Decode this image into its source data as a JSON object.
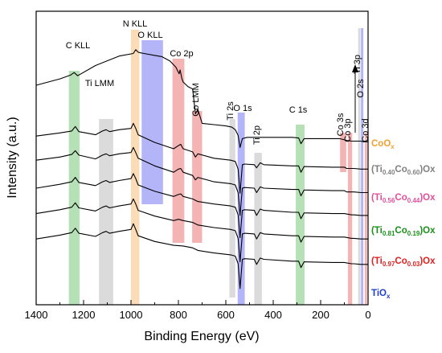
{
  "chart_data": {
    "type": "line",
    "title": "",
    "xlabel": "Binding Energy (eV)",
    "ylabel": "Intensity (a.u.)",
    "xlim": [
      1400,
      0
    ],
    "x_reversed": true,
    "x_ticks": [
      "1400",
      "1200",
      "1000",
      "800",
      "600",
      "400",
      "200",
      "0"
    ],
    "y_ticks": "none",
    "grid": false,
    "bands": [
      {
        "label": "C KLL",
        "from": 1262,
        "to": 1217,
        "color": "#8fd18f"
      },
      {
        "label": "Ti LMM",
        "from": 1135,
        "to": 1075,
        "color": "#c8c8c8"
      },
      {
        "label": "N KLL",
        "from": 1000,
        "to": 965,
        "color": "#f9c98f"
      },
      {
        "label": "O KLL",
        "from": 955,
        "to": 865,
        "color": "#8c8cf5"
      },
      {
        "label": "Co 2p",
        "from": 825,
        "to": 775,
        "color": "#f08c8c"
      },
      {
        "label": "Co LMM",
        "from": 742,
        "to": 700,
        "color": "#f08c8c"
      },
      {
        "label": "Ti 2s",
        "from": 585,
        "to": 560,
        "color": "#c8c8c8"
      },
      {
        "label": "O 1s",
        "from": 550,
        "to": 520,
        "color": "#8c8cf5"
      },
      {
        "label": "Ti 2p",
        "from": 480,
        "to": 448,
        "color": "#c8c8c8"
      },
      {
        "label": "C 1s",
        "from": 305,
        "to": 268,
        "color": "#8fd18f"
      },
      {
        "label": "Co 3s",
        "from": 118,
        "to": 92,
        "color": "#f08c8c"
      },
      {
        "label": "Co 3p",
        "from": 85,
        "to": 67,
        "color": "#f08c8c"
      },
      {
        "label": "Ti 3p",
        "from": 42,
        "to": 32,
        "color": "#c8c8c8"
      },
      {
        "label": "O 2s",
        "from": 30,
        "to": 20,
        "color": "#8c8cf5"
      },
      {
        "label": "Co 3d",
        "from": 14,
        "to": 4,
        "color": "#f08c8c"
      }
    ],
    "series": [
      {
        "name": "CoO",
        "sub": "x",
        "name_after": "",
        "color": "#f0a030",
        "x": [
          1400,
          1300,
          1255,
          1240,
          1225,
          1150,
          1050,
          990,
          980,
          970,
          960,
          945,
          900,
          870,
          835,
          810,
          805,
          797,
          793,
          785,
          780,
          760,
          740,
          728,
          718,
          700,
          650,
          600,
          575,
          560,
          548,
          540,
          530,
          510,
          480,
          460,
          440,
          380,
          320,
          293,
          283,
          270,
          200,
          120,
          100,
          90,
          70,
          60,
          30,
          20,
          0
        ],
        "y": [
          0.0,
          0.1,
          0.16,
          0.2,
          0.15,
          0.31,
          0.46,
          0.5,
          0.56,
          0.52,
          0.51,
          0.5,
          0.47,
          0.45,
          0.38,
          0.28,
          0.24,
          0.18,
          0.24,
          0.1,
          0.05,
          -0.02,
          -0.06,
          -0.45,
          -0.38,
          -0.6,
          -0.62,
          -0.64,
          -0.66,
          -0.7,
          -0.79,
          -0.98,
          -0.84,
          -0.82,
          -0.82,
          -0.82,
          -0.82,
          -0.82,
          -0.82,
          -0.83,
          -0.92,
          -0.84,
          -0.84,
          -0.84,
          -0.86,
          -0.87,
          -0.88,
          -0.88,
          -0.88,
          -0.89,
          -0.89
        ]
      },
      {
        "name": "(Ti",
        "sub": "0.40",
        "mid": "Co",
        "sub2": "0.60",
        "name_after": ")Ox",
        "color": "#808080",
        "x": [
          1400,
          1300,
          1250,
          1235,
          1220,
          1150,
          1120,
          1105,
          1090,
          1050,
          1000,
          990,
          980,
          970,
          900,
          820,
          800,
          790,
          780,
          740,
          728,
          718,
          650,
          580,
          560,
          548,
          540,
          530,
          520,
          480,
          470,
          455,
          440,
          320,
          293,
          283,
          270,
          150,
          100,
          90,
          70,
          60,
          30,
          0
        ],
        "y": [
          -0.8,
          -0.75,
          -0.72,
          -0.65,
          -0.73,
          -0.78,
          -0.72,
          -0.7,
          -0.73,
          -0.7,
          -0.68,
          -0.6,
          -0.68,
          -0.78,
          -0.9,
          -1.0,
          -0.95,
          -0.93,
          -1.0,
          -1.05,
          -1.13,
          -1.08,
          -1.15,
          -1.18,
          -1.2,
          -1.32,
          -1.7,
          -1.25,
          -1.24,
          -1.25,
          -1.3,
          -1.22,
          -1.25,
          -1.27,
          -1.27,
          -1.37,
          -1.28,
          -1.29,
          -1.29,
          -1.31,
          -1.31,
          -1.31,
          -1.32,
          -1.32
        ]
      },
      {
        "name": "(Ti",
        "sub": "0.56",
        "mid": "Co",
        "sub2": "0.44",
        "name_after": ")Ox",
        "color": "#e0509a",
        "x": [
          1400,
          1300,
          1250,
          1235,
          1220,
          1150,
          1120,
          1105,
          1090,
          1050,
          1000,
          990,
          980,
          970,
          900,
          820,
          800,
          790,
          780,
          740,
          728,
          718,
          650,
          580,
          560,
          548,
          540,
          530,
          520,
          480,
          470,
          455,
          440,
          320,
          293,
          283,
          270,
          150,
          100,
          90,
          70,
          60,
          30,
          0
        ],
        "y": [
          -1.18,
          -1.13,
          -1.09,
          -1.03,
          -1.1,
          -1.16,
          -1.1,
          -1.08,
          -1.11,
          -1.08,
          -1.06,
          -0.98,
          -1.06,
          -1.15,
          -1.27,
          -1.37,
          -1.32,
          -1.31,
          -1.37,
          -1.42,
          -1.49,
          -1.45,
          -1.52,
          -1.55,
          -1.57,
          -1.69,
          -2.05,
          -1.62,
          -1.61,
          -1.62,
          -1.69,
          -1.6,
          -1.62,
          -1.64,
          -1.64,
          -1.74,
          -1.65,
          -1.66,
          -1.66,
          -1.68,
          -1.68,
          -1.68,
          -1.69,
          -1.69
        ]
      },
      {
        "name": "(Ti",
        "sub": "0.81",
        "mid": "Co",
        "sub2": "0.19",
        "name_after": ")Ox",
        "color": "#1a8f1a",
        "x": [
          1400,
          1300,
          1250,
          1235,
          1220,
          1150,
          1120,
          1105,
          1090,
          1050,
          1000,
          990,
          980,
          970,
          900,
          820,
          800,
          790,
          780,
          740,
          718,
          650,
          580,
          560,
          548,
          540,
          530,
          520,
          480,
          470,
          455,
          440,
          320,
          293,
          283,
          270,
          150,
          100,
          70,
          60,
          30,
          0
        ],
        "y": [
          -1.62,
          -1.56,
          -1.52,
          -1.45,
          -1.53,
          -1.58,
          -1.52,
          -1.5,
          -1.53,
          -1.5,
          -1.47,
          -1.39,
          -1.47,
          -1.57,
          -1.67,
          -1.75,
          -1.72,
          -1.71,
          -1.75,
          -1.79,
          -1.83,
          -1.87,
          -1.9,
          -1.92,
          -2.04,
          -2.4,
          -1.97,
          -1.96,
          -1.97,
          -2.05,
          -1.95,
          -1.97,
          -2.0,
          -2.0,
          -2.1,
          -2.01,
          -2.02,
          -2.02,
          -2.04,
          -2.04,
          -2.05,
          -2.05
        ]
      },
      {
        "name": "(Ti",
        "sub": "0.97",
        "mid": "Co",
        "sub2": "0.03",
        "name_after": ")Ox",
        "color": "#e02020",
        "x": [
          1400,
          1300,
          1250,
          1235,
          1220,
          1150,
          1120,
          1105,
          1090,
          1050,
          1000,
          990,
          980,
          970,
          900,
          820,
          800,
          780,
          740,
          718,
          650,
          580,
          560,
          548,
          540,
          530,
          520,
          480,
          470,
          455,
          440,
          320,
          293,
          283,
          270,
          150,
          100,
          70,
          60,
          30,
          0
        ],
        "y": [
          -2.02,
          -1.96,
          -1.92,
          -1.85,
          -1.93,
          -1.98,
          -1.92,
          -1.9,
          -1.93,
          -1.9,
          -1.87,
          -1.79,
          -1.87,
          -1.97,
          -2.06,
          -2.13,
          -2.11,
          -2.13,
          -2.16,
          -2.2,
          -2.24,
          -2.27,
          -2.29,
          -2.41,
          -2.78,
          -2.34,
          -2.33,
          -2.34,
          -2.42,
          -2.32,
          -2.34,
          -2.37,
          -2.37,
          -2.47,
          -2.38,
          -2.39,
          -2.39,
          -2.41,
          -2.41,
          -2.42,
          -2.42
        ]
      },
      {
        "name": "TiO",
        "sub": "x",
        "name_after": "",
        "color": "#2040d0",
        "x": [
          1400,
          1300,
          1250,
          1235,
          1220,
          1150,
          1120,
          1105,
          1090,
          1050,
          1000,
          990,
          980,
          970,
          900,
          820,
          780,
          740,
          718,
          650,
          580,
          560,
          548,
          540,
          530,
          520,
          480,
          470,
          455,
          440,
          320,
          293,
          283,
          270,
          150,
          100,
          70,
          60,
          30,
          0
        ],
        "y": [
          -2.42,
          -2.36,
          -2.32,
          -2.25,
          -2.33,
          -2.38,
          -2.32,
          -2.3,
          -2.33,
          -2.3,
          -2.27,
          -2.18,
          -2.27,
          -2.37,
          -2.46,
          -2.52,
          -2.53,
          -2.56,
          -2.6,
          -2.64,
          -2.67,
          -2.69,
          -2.81,
          -3.2,
          -2.74,
          -2.73,
          -2.74,
          -2.82,
          -2.72,
          -2.74,
          -2.77,
          -2.77,
          -2.87,
          -2.78,
          -2.79,
          -2.79,
          -2.81,
          -2.81,
          -2.82,
          -2.82
        ]
      }
    ]
  }
}
